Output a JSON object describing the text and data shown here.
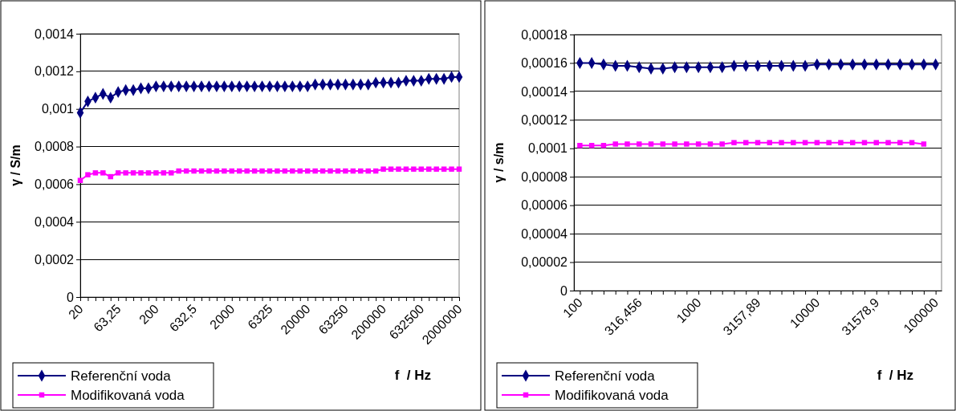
{
  "chart_data": [
    {
      "type": "line",
      "xlabel": "f  / Hz",
      "ylabel": "γ / S/m",
      "grid": "y",
      "legend": "bottom left",
      "categories": [
        "20",
        null,
        null,
        null,
        null,
        "63,25",
        null,
        null,
        null,
        null,
        "200",
        null,
        null,
        null,
        null,
        "632,5",
        null,
        null,
        null,
        null,
        "2000",
        null,
        null,
        null,
        null,
        "6325",
        null,
        null,
        null,
        null,
        "20000",
        null,
        null,
        null,
        null,
        "63250",
        null,
        null,
        null,
        null,
        "200000",
        null,
        null,
        null,
        null,
        "632500",
        null,
        null,
        null,
        null,
        "2000000"
      ],
      "ylim": [
        0,
        0.0014
      ],
      "yticks": [
        0,
        {
          "value": 0.0002,
          "label": "0,0002"
        },
        {
          "value": 0.0004,
          "label": "0,0004"
        },
        {
          "value": 0.0006,
          "label": "0,0006"
        },
        {
          "value": 0.0008,
          "label": "0,0008"
        },
        {
          "value": 0.001,
          "label": "0,001"
        },
        {
          "value": 0.0012,
          "label": "0,0012"
        },
        {
          "value": 0.0014,
          "label": "0,0014"
        }
      ],
      "series": [
        {
          "name": "Referenční voda",
          "color": "#000080",
          "marker": "diamond",
          "values": [
            0.00098,
            0.00104,
            0.00106,
            0.00108,
            0.00106,
            0.00109,
            0.0011,
            0.0011,
            0.00111,
            0.00111,
            0.00112,
            0.00112,
            0.00112,
            0.00112,
            0.00112,
            0.00112,
            0.00112,
            0.00112,
            0.00112,
            0.00112,
            0.00112,
            0.00112,
            0.00112,
            0.00112,
            0.00112,
            0.00112,
            0.00112,
            0.00112,
            0.00112,
            0.00112,
            0.00112,
            0.00113,
            0.00113,
            0.00113,
            0.00113,
            0.00113,
            0.00113,
            0.00113,
            0.00113,
            0.00114,
            0.00114,
            0.00114,
            0.00114,
            0.00115,
            0.00115,
            0.00115,
            0.00116,
            0.00116,
            0.00116,
            0.00117,
            0.00117
          ]
        },
        {
          "name": "Modifikovaná voda",
          "color": "#ff00ff",
          "marker": "square",
          "values": [
            0.00062,
            0.00065,
            0.00066,
            0.00066,
            0.00064,
            0.00066,
            0.00066,
            0.00066,
            0.00066,
            0.00066,
            0.00066,
            0.00066,
            0.00066,
            0.00067,
            0.00067,
            0.00067,
            0.00067,
            0.00067,
            0.00067,
            0.00067,
            0.00067,
            0.00067,
            0.00067,
            0.00067,
            0.00067,
            0.00067,
            0.00067,
            0.00067,
            0.00067,
            0.00067,
            0.00067,
            0.00067,
            0.00067,
            0.00067,
            0.00067,
            0.00067,
            0.00067,
            0.00067,
            0.00067,
            0.00067,
            0.00068,
            0.00068,
            0.00068,
            0.00068,
            0.00068,
            0.00068,
            0.00068,
            0.00068,
            0.00068,
            0.00068,
            0.00068
          ]
        }
      ]
    },
    {
      "type": "line",
      "xlabel": "f  / Hz",
      "ylabel": "γ / s/m",
      "grid": "y",
      "legend": "bottom left",
      "categories": [
        "100",
        null,
        null,
        null,
        null,
        "316,456",
        null,
        null,
        null,
        null,
        "1000",
        null,
        null,
        null,
        null,
        "3157,89",
        null,
        null,
        null,
        null,
        "10000",
        null,
        null,
        null,
        null,
        "31578,9",
        null,
        null,
        null,
        null,
        "100000"
      ],
      "ylim": [
        0,
        0.00018
      ],
      "yticks": [
        0,
        {
          "value": 2e-05,
          "label": "0,00002"
        },
        {
          "value": 4e-05,
          "label": "0,00004"
        },
        {
          "value": 6e-05,
          "label": "0,00006"
        },
        {
          "value": 8e-05,
          "label": "0,00008"
        },
        {
          "value": 0.0001,
          "label": "0,0001"
        },
        {
          "value": 0.00012,
          "label": "0,00012"
        },
        {
          "value": 0.00014,
          "label": "0,00014"
        },
        {
          "value": 0.00016,
          "label": "0,00016"
        },
        {
          "value": 0.00018,
          "label": "0,00018"
        }
      ],
      "series": [
        {
          "name": "Referenční voda",
          "color": "#000080",
          "marker": "diamond",
          "values": [
            0.00016,
            0.00016,
            0.000159,
            0.000158,
            0.000158,
            0.000157,
            0.000156,
            0.000156,
            0.000157,
            0.000157,
            0.000157,
            0.000157,
            0.000157,
            0.000158,
            0.000158,
            0.000158,
            0.000158,
            0.000158,
            0.000158,
            0.000158,
            0.000159,
            0.000159,
            0.000159,
            0.000159,
            0.000159,
            0.000159,
            0.000159,
            0.000159,
            0.000159,
            0.000159,
            0.000159
          ]
        },
        {
          "name": "Modifikovaná voda",
          "color": "#ff00ff",
          "marker": "square",
          "values": [
            0.000102,
            0.000102,
            0.000102,
            0.000103,
            0.000103,
            0.000103,
            0.000103,
            0.000103,
            0.000103,
            0.000103,
            0.000103,
            0.000103,
            0.000103,
            0.000104,
            0.000104,
            0.000104,
            0.000104,
            0.000104,
            0.000104,
            0.000104,
            0.000104,
            0.000104,
            0.000104,
            0.000104,
            0.000104,
            0.000104,
            0.000104,
            0.000104,
            0.000104,
            0.000103,
            null
          ]
        }
      ]
    }
  ]
}
